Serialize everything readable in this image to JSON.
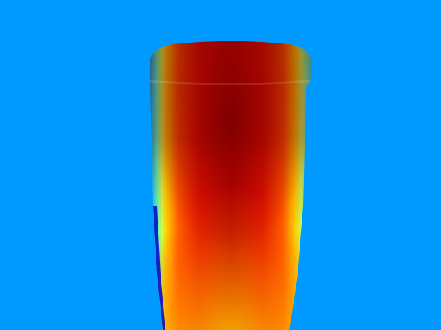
{
  "scene": {
    "subject": "cup",
    "colormap": "jet",
    "colors": {
      "background": "#0099ff",
      "colormap_stops": [
        "#00008f",
        "#0000ff",
        "#00c8ff",
        "#7dff7a",
        "#ffff00",
        "#ff8a00",
        "#ff1a00",
        "#8b0000"
      ]
    }
  }
}
